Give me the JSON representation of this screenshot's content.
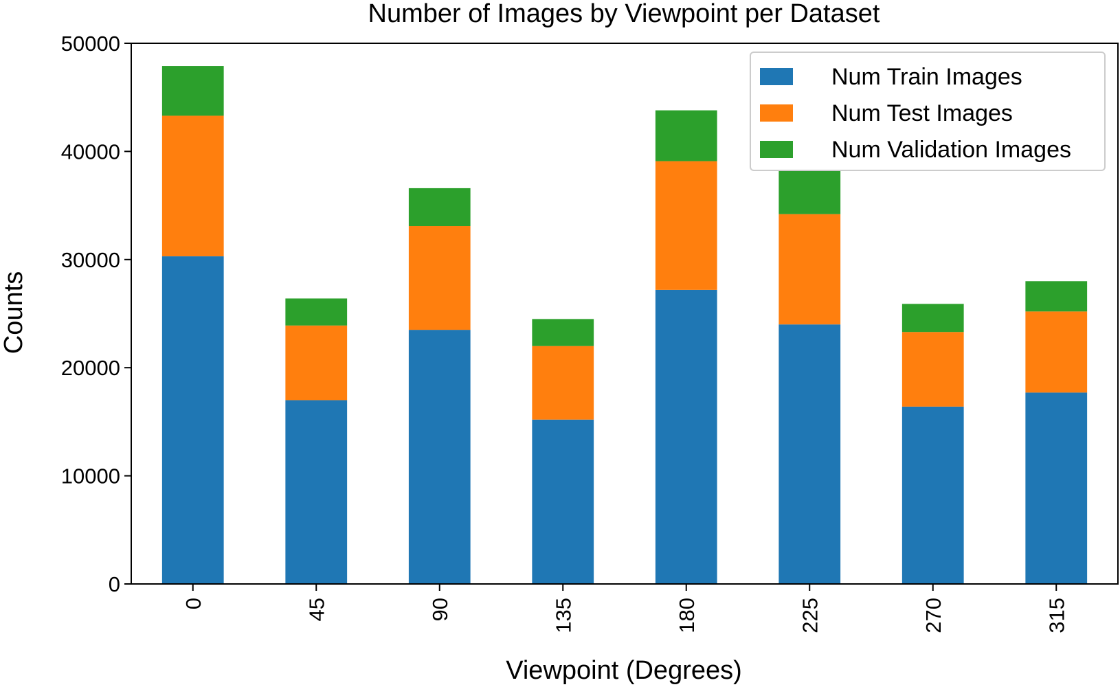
{
  "chart_data": {
    "type": "bar",
    "stacked": true,
    "title": "Number of Images by Viewpoint per Dataset",
    "xlabel": "Viewpoint (Degrees)",
    "ylabel": "Counts",
    "categories": [
      "0",
      "45",
      "90",
      "135",
      "180",
      "225",
      "270",
      "315"
    ],
    "ylim": [
      0,
      50000
    ],
    "yticks": [
      "0",
      "10000",
      "20000",
      "30000",
      "40000",
      "50000"
    ],
    "legend_position": "top-right",
    "grid": false,
    "series": [
      {
        "name": "Num Train Images",
        "color": "#1f77b4",
        "values": [
          30300,
          17000,
          23500,
          15200,
          27200,
          24000,
          16400,
          17700
        ]
      },
      {
        "name": "Num Test Images",
        "color": "#ff7f0e",
        "values": [
          13000,
          6900,
          9600,
          6800,
          11900,
          10200,
          6900,
          7500
        ]
      },
      {
        "name": "Num Validation Images",
        "color": "#2ca02c",
        "values": [
          4600,
          2500,
          3500,
          2500,
          4700,
          4100,
          2600,
          2800
        ]
      }
    ]
  }
}
